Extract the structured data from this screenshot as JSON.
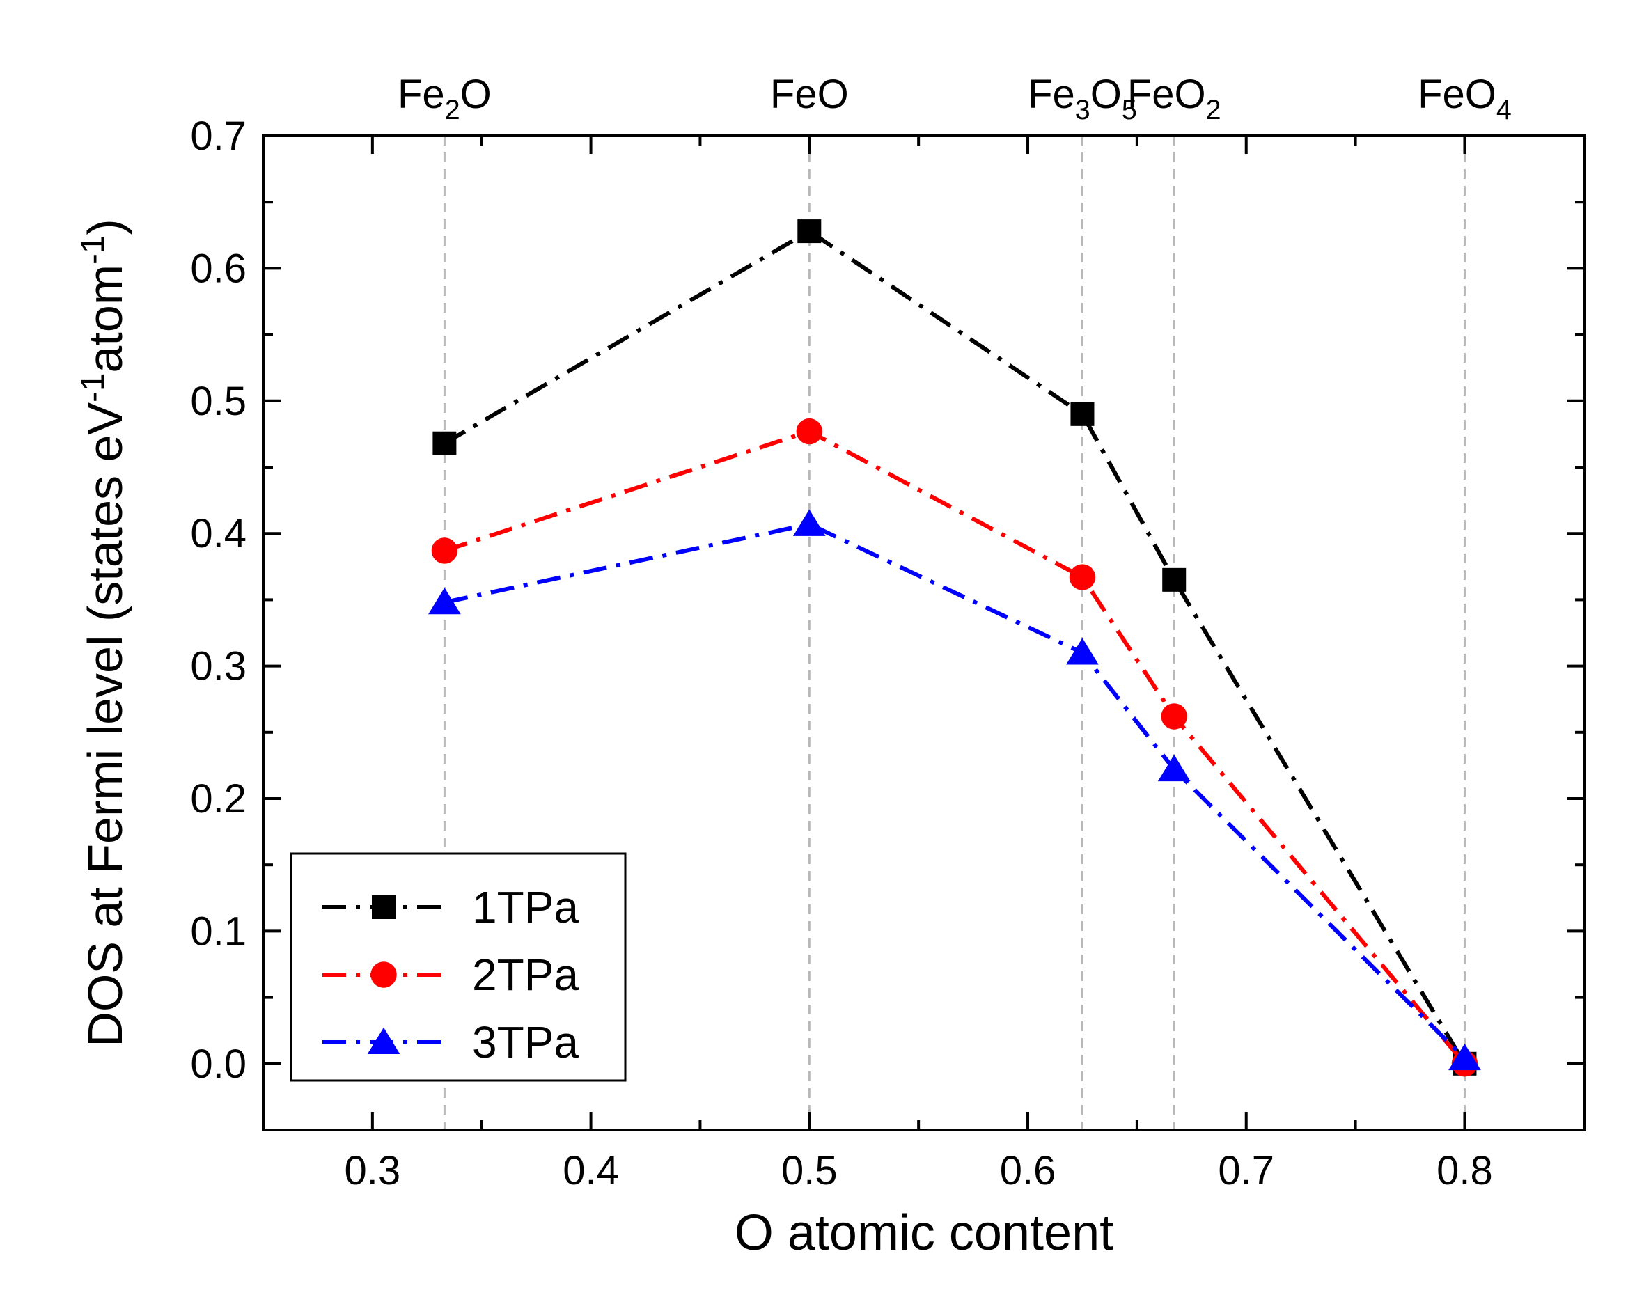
{
  "chart_data": {
    "type": "line",
    "xlabel": "O atomic content",
    "ylabel_parts": [
      {
        "text": "DOS at Fermi level (states eV"
      },
      {
        "text": "-1",
        "sup": true
      },
      {
        "text": "atom"
      },
      {
        "text": "-1",
        "sup": true
      },
      {
        "text": ")"
      }
    ],
    "xlim": [
      0.25,
      0.855
    ],
    "ylim": [
      -0.05,
      0.7
    ],
    "x_ticks": [
      0.3,
      0.4,
      0.5,
      0.6,
      0.7,
      0.8
    ],
    "x_minor_ticks": [
      0.35,
      0.45,
      0.55,
      0.65,
      0.75
    ],
    "y_ticks": [
      0.0,
      0.1,
      0.2,
      0.3,
      0.4,
      0.5,
      0.6,
      0.7
    ],
    "y_minor_ticks": [
      -0.05,
      0.05,
      0.15,
      0.25,
      0.35,
      0.45,
      0.55,
      0.65
    ],
    "x_tick_labels": [
      "0.3",
      "0.4",
      "0.5",
      "0.6",
      "0.7",
      "0.8"
    ],
    "y_tick_labels": [
      "0.0",
      "0.1",
      "0.2",
      "0.3",
      "0.4",
      "0.5",
      "0.6",
      "0.7"
    ],
    "grid": false,
    "legend_position": "lower-left",
    "compound_markers": [
      {
        "x": 0.333,
        "parts": [
          {
            "text": "Fe"
          },
          {
            "text": "2",
            "sub": true
          },
          {
            "text": "O"
          }
        ]
      },
      {
        "x": 0.5,
        "parts": [
          {
            "text": "FeO"
          }
        ]
      },
      {
        "x": 0.625,
        "parts": [
          {
            "text": "Fe"
          },
          {
            "text": "3",
            "sub": true
          },
          {
            "text": "O"
          },
          {
            "text": "5",
            "sub": true
          }
        ]
      },
      {
        "x": 0.667,
        "parts": [
          {
            "text": "FeO"
          },
          {
            "text": "2",
            "sub": true
          }
        ]
      },
      {
        "x": 0.8,
        "parts": [
          {
            "text": "FeO"
          },
          {
            "text": "4",
            "sub": true
          }
        ]
      }
    ],
    "x": [
      0.333,
      0.5,
      0.625,
      0.667,
      0.8
    ],
    "series": [
      {
        "name": "1TPa",
        "color": "#000000",
        "marker": "square",
        "values": [
          0.468,
          0.628,
          0.49,
          0.365,
          0.0
        ]
      },
      {
        "name": "2TPa",
        "color": "#ff0000",
        "marker": "circle",
        "values": [
          0.387,
          0.477,
          0.367,
          0.262,
          0.0
        ]
      },
      {
        "name": "3TPa",
        "color": "#0000ff",
        "marker": "triangle",
        "values": [
          0.348,
          0.407,
          0.31,
          0.222,
          0.004
        ]
      }
    ]
  }
}
